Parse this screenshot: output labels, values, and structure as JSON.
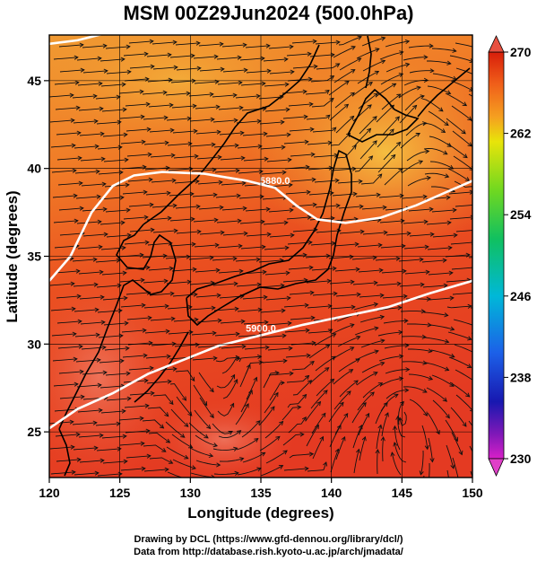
{
  "title": "MSM 00Z29Jun2024 (500.0hPa)",
  "x_axis": {
    "label": "Longitude (degrees)",
    "ticks": [
      120,
      125,
      130,
      135,
      140,
      145,
      150
    ],
    "range": [
      120,
      150
    ]
  },
  "y_axis": {
    "label": "Latitude  (degrees)",
    "ticks": [
      25,
      30,
      35,
      40,
      45
    ],
    "range": [
      22.4,
      47.6
    ]
  },
  "colorbar": {
    "ticks": [
      270,
      262,
      254,
      246,
      238,
      230
    ],
    "range": [
      230,
      270
    ]
  },
  "contours": [
    {
      "label": "5880.0",
      "points": [
        [
          120,
          33.6
        ],
        [
          121.5,
          35
        ],
        [
          123,
          37.5
        ],
        [
          124.5,
          39
        ],
        [
          126,
          39.6
        ],
        [
          128,
          39.8
        ],
        [
          131,
          39.7
        ],
        [
          134,
          39.3
        ],
        [
          136,
          38.9
        ],
        [
          137.5,
          37.9
        ],
        [
          139,
          37.1
        ],
        [
          141,
          36.9
        ],
        [
          143.5,
          37.2
        ],
        [
          146,
          37.9
        ],
        [
          148,
          38.6
        ],
        [
          150,
          39.3
        ]
      ]
    },
    {
      "label": "5900.0",
      "points": [
        [
          120,
          25.2
        ],
        [
          122,
          26.3
        ],
        [
          124.5,
          27.2
        ],
        [
          127,
          28.3
        ],
        [
          129.5,
          29.1
        ],
        [
          132,
          29.9
        ],
        [
          135,
          30.5
        ],
        [
          138,
          31.1
        ],
        [
          141,
          31.6
        ],
        [
          144,
          32.1
        ],
        [
          147,
          32.9
        ],
        [
          150,
          33.6
        ]
      ]
    },
    {
      "label": "",
      "points": [
        [
          120,
          47.1
        ],
        [
          122,
          47.3
        ],
        [
          124,
          47.7
        ]
      ]
    }
  ],
  "credit": {
    "line1": "Drawing by DCL (https://www.gfd-dennou.org/library/dcl/)",
    "line2": "Data from http://database.rish.kyoto-u.ac.jp/arch/jmadata/"
  }
}
